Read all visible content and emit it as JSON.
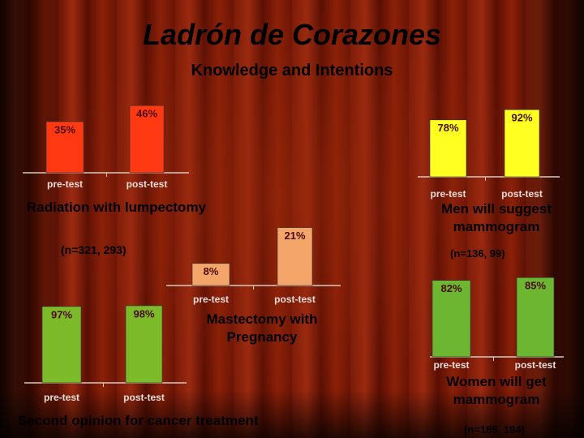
{
  "title": "Ladrón de Corazones",
  "subtitle": "Knowledge and Intentions",
  "chart_data": [
    {
      "type": "bar",
      "title": "Radiation with lumpectomy",
      "subtitle": "(n=321, 293)",
      "categories": [
        "pre-test",
        "post-test"
      ],
      "values": [
        35,
        46
      ],
      "value_labels": [
        "35%",
        "46%"
      ],
      "color": "#ff3a12"
    },
    {
      "type": "bar",
      "title": "Men will suggest mammogram",
      "subtitle": "(n=136, 99)",
      "categories": [
        "pre-test",
        "post-test"
      ],
      "values": [
        78,
        92
      ],
      "value_labels": [
        "78%",
        "92%"
      ],
      "color": "#ffff22"
    },
    {
      "type": "bar",
      "title": "Mastectomy with Pregnancy",
      "categories": [
        "pre-test",
        "post-test"
      ],
      "values": [
        8,
        21
      ],
      "value_labels": [
        "8%",
        "21%"
      ],
      "color": "#f4a66a"
    },
    {
      "type": "bar",
      "title": "Second opinion for cancer treatment",
      "categories": [
        "pre-test",
        "post-test"
      ],
      "values": [
        97,
        98
      ],
      "value_labels": [
        "97%",
        "98%"
      ],
      "color": "#7cba2a"
    },
    {
      "type": "bar",
      "title": "Women will get mammogram",
      "subtitle": "(n=185, 194)",
      "categories": [
        "pre-test",
        "post-test"
      ],
      "values": [
        82,
        85
      ],
      "value_labels": [
        "82%",
        "85%"
      ],
      "color": "#6cb632"
    }
  ]
}
